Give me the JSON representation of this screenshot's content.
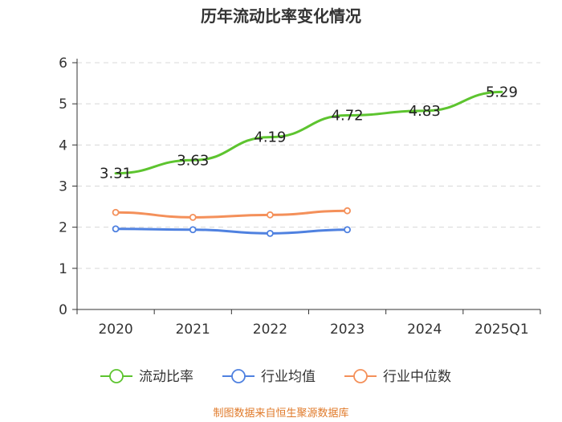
{
  "chart_data": {
    "type": "line",
    "title": "历年流动比率变化情况",
    "categories": [
      "2020",
      "2021",
      "2022",
      "2023",
      "2024",
      "2025Q1"
    ],
    "ylim": [
      0,
      6
    ],
    "yticks": [
      "0",
      "1",
      "2",
      "3",
      "4",
      "5",
      "6"
    ],
    "grid": true,
    "legend_position": "bottom",
    "series": [
      {
        "name": "流动比率",
        "color": "#5dc42f",
        "values": [
          3.31,
          3.63,
          4.19,
          4.72,
          4.83,
          5.29
        ],
        "labels": [
          "3.31",
          "3.63",
          "4.19",
          "4.72",
          "4.83",
          "5.29"
        ]
      },
      {
        "name": "行业均值",
        "color": "#4f81e0",
        "values": [
          1.96,
          1.94,
          1.85,
          1.94,
          null,
          null
        ]
      },
      {
        "name": "行业中位数",
        "color": "#f4905a",
        "values": [
          2.36,
          2.24,
          2.3,
          2.4,
          null,
          null
        ]
      }
    ],
    "source": "制图数据来自恒生聚源数据库"
  }
}
